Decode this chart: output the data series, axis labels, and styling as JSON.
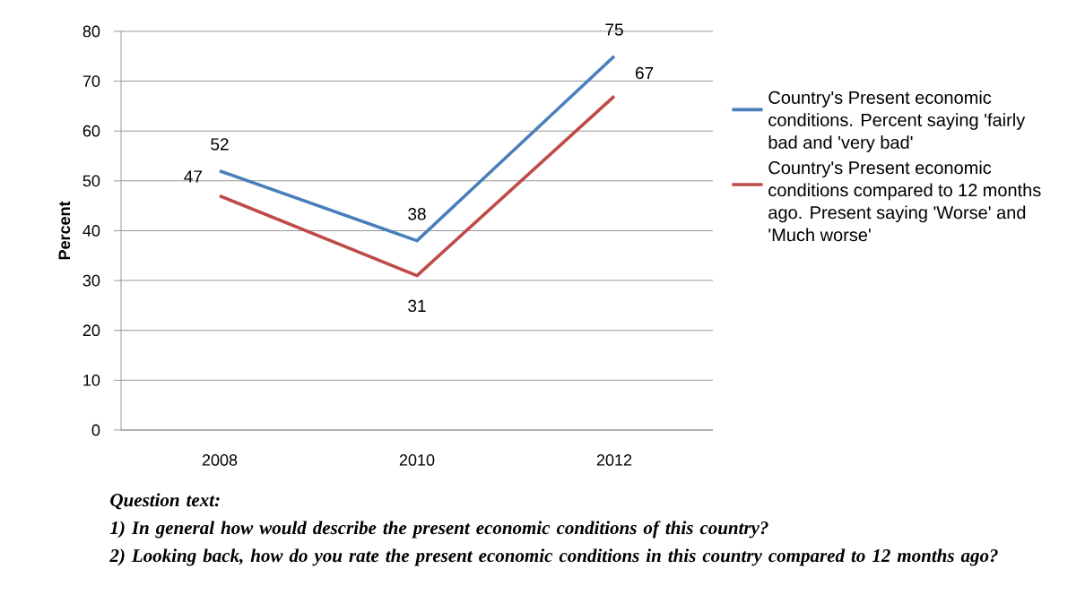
{
  "chart_data": {
    "type": "line",
    "ylabel": "Percent",
    "categories": [
      "2008",
      "2010",
      "2012"
    ],
    "series": [
      {
        "name": "Country's Present economic conditions. Percent saying 'fairly bad and 'very bad'",
        "color": "#4a7ebb",
        "values": [
          52,
          38,
          75
        ]
      },
      {
        "name": "Country's Present economic conditions compared to 12 months ago. Present saying 'Worse' and 'Much worse'",
        "color": "#be4b48",
        "values": [
          47,
          31,
          67
        ]
      }
    ],
    "ylim": [
      0,
      80
    ],
    "yticks": [
      0,
      10,
      20,
      30,
      40,
      50,
      60,
      70,
      80
    ],
    "grid": "y",
    "legend": "right",
    "marker": "none",
    "line_style": "solid",
    "data_labels": true,
    "annotations": [
      "Question text:",
      "1) In general how would describe the present economic conditions of this country?",
      "2) Looking back, how do you rate the present economic conditions in this country compared to 12 months ago?"
    ]
  }
}
